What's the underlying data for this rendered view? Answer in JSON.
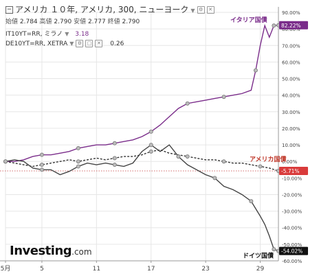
{
  "header": {
    "symbol_title": "アメリカ １０年, アメリカ, 300, ニューヨーク",
    "ohlc": [
      {
        "label": "始値",
        "value": "2.784"
      },
      {
        "label": "高値",
        "value": "2.790"
      },
      {
        "label": "安値",
        "value": "2.777"
      },
      {
        "label": "終値",
        "value": "2.790"
      }
    ],
    "comparisons": [
      {
        "symbol": "IT10YT=RR, ミラノ",
        "value": "3.18"
      },
      {
        "symbol": "DE10YT=RR, XETRA",
        "value": "0.26"
      }
    ]
  },
  "branding": {
    "name": "Investing",
    "suffix": ".com"
  },
  "colors": {
    "italy": "#7a2c8a",
    "usa": "#333333",
    "germany": "#444444",
    "zero_line": "#c23b3b",
    "last_usa_bg": "#d93b3b",
    "grid": "#e6e6e6"
  },
  "chart_data": {
    "type": "line",
    "title": "",
    "xlabel": "",
    "ylabel": "",
    "x_ticks": [
      "5月",
      "5",
      "11",
      "17",
      "23",
      "29"
    ],
    "x_tick_days": [
      1,
      5,
      11,
      17,
      23,
      29
    ],
    "xlim": [
      1,
      31
    ],
    "ylim": [
      -60,
      90
    ],
    "y_ticks": [
      90,
      80,
      70,
      60,
      50,
      40,
      30,
      20,
      10,
      0,
      -10,
      -20,
      -30,
      -40,
      -50,
      -60
    ],
    "y_tick_labels": [
      "90.00%",
      "80.00%",
      "70.00%",
      "60.00%",
      "50.00%",
      "40.00%",
      "30.00%",
      "20.00%",
      "10.00%",
      "0.00%",
      "-10.00%",
      "-20.00%",
      "-30.00%",
      "-40.00%",
      "-50.00%",
      "-60.00%"
    ],
    "series": [
      {
        "name": "イタリア国債",
        "color_key": "italy",
        "last_label": "82.22%",
        "x": [
          1,
          2,
          3,
          4,
          5,
          6,
          7,
          8,
          9,
          10,
          11,
          12,
          13,
          14,
          15,
          16,
          17,
          18,
          19,
          20,
          21,
          22,
          23,
          24,
          25,
          26,
          27,
          28,
          28.5,
          29,
          29.5,
          30,
          30.5,
          31
        ],
        "y": [
          0,
          0,
          1,
          3,
          4,
          4,
          5,
          6,
          8,
          9,
          10,
          10,
          11,
          12,
          13,
          15,
          18,
          22,
          27,
          32,
          35,
          36,
          37,
          38,
          39,
          40,
          41,
          43,
          55,
          70,
          82,
          75,
          82,
          82.22
        ]
      },
      {
        "name": "アメリカ国債",
        "color_key": "usa",
        "last_label": "-5.71%",
        "dashed": true,
        "x": [
          1,
          2,
          3,
          4,
          5,
          6,
          7,
          8,
          9,
          10,
          11,
          12,
          13,
          14,
          15,
          16,
          17,
          18,
          19,
          20,
          21,
          22,
          23,
          24,
          25,
          26,
          27,
          28,
          29,
          30,
          31
        ],
        "y": [
          0,
          -1,
          -2,
          -3,
          -2,
          -1,
          0,
          1,
          0,
          1,
          2,
          1,
          2,
          3,
          3,
          4,
          6,
          7,
          5,
          4,
          3,
          2,
          1,
          1,
          0,
          -1,
          -1,
          -2,
          -3,
          -4,
          -5.71
        ]
      },
      {
        "name": "ドイツ国債",
        "color_key": "germany",
        "last_label": "-54.02%",
        "x": [
          1,
          2,
          3,
          4,
          5,
          6,
          7,
          8,
          9,
          10,
          11,
          12,
          13,
          14,
          15,
          16,
          17,
          17.5,
          18,
          19,
          20,
          21,
          22,
          23,
          24,
          25,
          26,
          27,
          28,
          29,
          29.5,
          30,
          30.5,
          31
        ],
        "y": [
          0,
          1,
          0,
          -4,
          -5,
          -5,
          -8,
          -6,
          -3,
          -1,
          -2,
          -1,
          -2,
          -3,
          -1,
          6,
          10,
          8,
          6,
          10,
          3,
          -2,
          -5,
          -8,
          -10,
          -15,
          -17,
          -20,
          -24,
          -33,
          -38,
          -45,
          -53,
          -54.02
        ]
      }
    ]
  }
}
